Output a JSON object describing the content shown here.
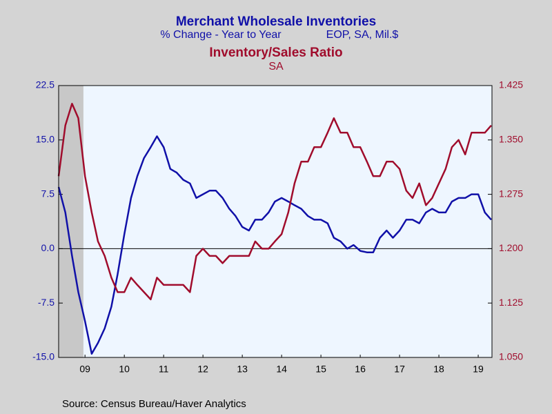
{
  "chart_data": {
    "type": "line",
    "title": "Merchant Wholesale Inventories",
    "subtitle_left": "% Change - Year to Year",
    "subtitle_right": "EOP, SA, Mil.$",
    "title2": "Inventory/Sales Ratio",
    "subtitle2": "SA",
    "source": "Source:  Census Bureau/Haver Analytics",
    "x": [
      2008.83,
      2009.0,
      2009.17,
      2009.33,
      2009.5,
      2009.67,
      2009.83,
      2010.0,
      2010.17,
      2010.33,
      2010.5,
      2010.67,
      2010.83,
      2011.0,
      2011.17,
      2011.33,
      2011.5,
      2011.67,
      2011.83,
      2012.0,
      2012.17,
      2012.33,
      2012.5,
      2012.67,
      2012.83,
      2013.0,
      2013.17,
      2013.33,
      2013.5,
      2013.67,
      2013.83,
      2014.0,
      2014.17,
      2014.33,
      2014.5,
      2014.67,
      2014.83,
      2015.0,
      2015.17,
      2015.33,
      2015.5,
      2015.67,
      2015.83,
      2016.0,
      2016.17,
      2016.33,
      2016.5,
      2016.67,
      2016.83,
      2017.0,
      2017.17,
      2017.33,
      2017.5,
      2017.67,
      2017.83,
      2018.0,
      2018.17,
      2018.33,
      2018.5,
      2018.67,
      2018.83,
      2019.0,
      2019.17,
      2019.33,
      2019.5,
      2019.67,
      2019.83
    ],
    "series": [
      {
        "color": "#1010a8",
        "axis": "y",
        "values": [
          8.5,
          5,
          -1,
          -6,
          -10,
          -14.5,
          -13,
          -11,
          -8,
          -3.5,
          2,
          7,
          10,
          12.5,
          14,
          15.5,
          14,
          11,
          10.5,
          9.5,
          9,
          7,
          7.5,
          8,
          8,
          7,
          5.5,
          4.5,
          3,
          2.5,
          4,
          4,
          5,
          6.5,
          7,
          6.5,
          6,
          5.5,
          4.5,
          4,
          4,
          3.5,
          1.5,
          1,
          0,
          0.5,
          -0.3,
          -0.5,
          -0.5,
          1.5,
          2.5,
          1.5,
          2.5,
          4,
          4,
          3.5,
          5,
          5.5,
          5,
          5,
          6.5,
          7,
          7,
          7.5,
          7.5,
          5,
          4
        ]
      },
      {
        "color": "#a00c2c",
        "axis": "y2",
        "values": [
          1.3,
          1.37,
          1.4,
          1.38,
          1.3,
          1.25,
          1.21,
          1.19,
          1.16,
          1.14,
          1.14,
          1.16,
          1.15,
          1.14,
          1.13,
          1.16,
          1.15,
          1.15,
          1.15,
          1.15,
          1.14,
          1.19,
          1.2,
          1.19,
          1.19,
          1.18,
          1.19,
          1.19,
          1.19,
          1.19,
          1.21,
          1.2,
          1.2,
          1.21,
          1.22,
          1.25,
          1.29,
          1.32,
          1.32,
          1.34,
          1.34,
          1.36,
          1.38,
          1.36,
          1.36,
          1.34,
          1.34,
          1.32,
          1.3,
          1.3,
          1.32,
          1.32,
          1.31,
          1.28,
          1.27,
          1.29,
          1.26,
          1.27,
          1.29,
          1.31,
          1.34,
          1.35,
          1.33,
          1.36,
          1.36,
          1.36,
          1.37
        ]
      }
    ],
    "xlim": [
      2008.83,
      2019.85
    ],
    "xticks": [
      {
        "value": 2009.5,
        "label": "09"
      },
      {
        "value": 2010.5,
        "label": "10"
      },
      {
        "value": 2011.5,
        "label": "11"
      },
      {
        "value": 2012.5,
        "label": "12"
      },
      {
        "value": 2013.5,
        "label": "13"
      },
      {
        "value": 2014.5,
        "label": "14"
      },
      {
        "value": 2015.5,
        "label": "15"
      },
      {
        "value": 2016.5,
        "label": "16"
      },
      {
        "value": 2017.5,
        "label": "17"
      },
      {
        "value": 2018.5,
        "label": "18"
      },
      {
        "value": 2019.5,
        "label": "19"
      }
    ],
    "ylim": [
      -15,
      22.5
    ],
    "yticks": [
      {
        "value": -15,
        "label": "-15.0"
      },
      -7.5,
      {
        "value": 0,
        "label": "0.0"
      },
      7.5,
      {
        "value": 15,
        "label": "15.0"
      },
      22.5
    ],
    "y2lim": [
      1.05,
      1.425
    ],
    "y2ticks": [
      {
        "value": 1.05,
        "label": "1.050"
      },
      1.125,
      {
        "value": 1.2,
        "label": "1.200"
      },
      1.275,
      {
        "value": 1.35,
        "label": "1.350"
      },
      1.425
    ],
    "shaded_range": [
      2008.83,
      2009.46
    ]
  }
}
